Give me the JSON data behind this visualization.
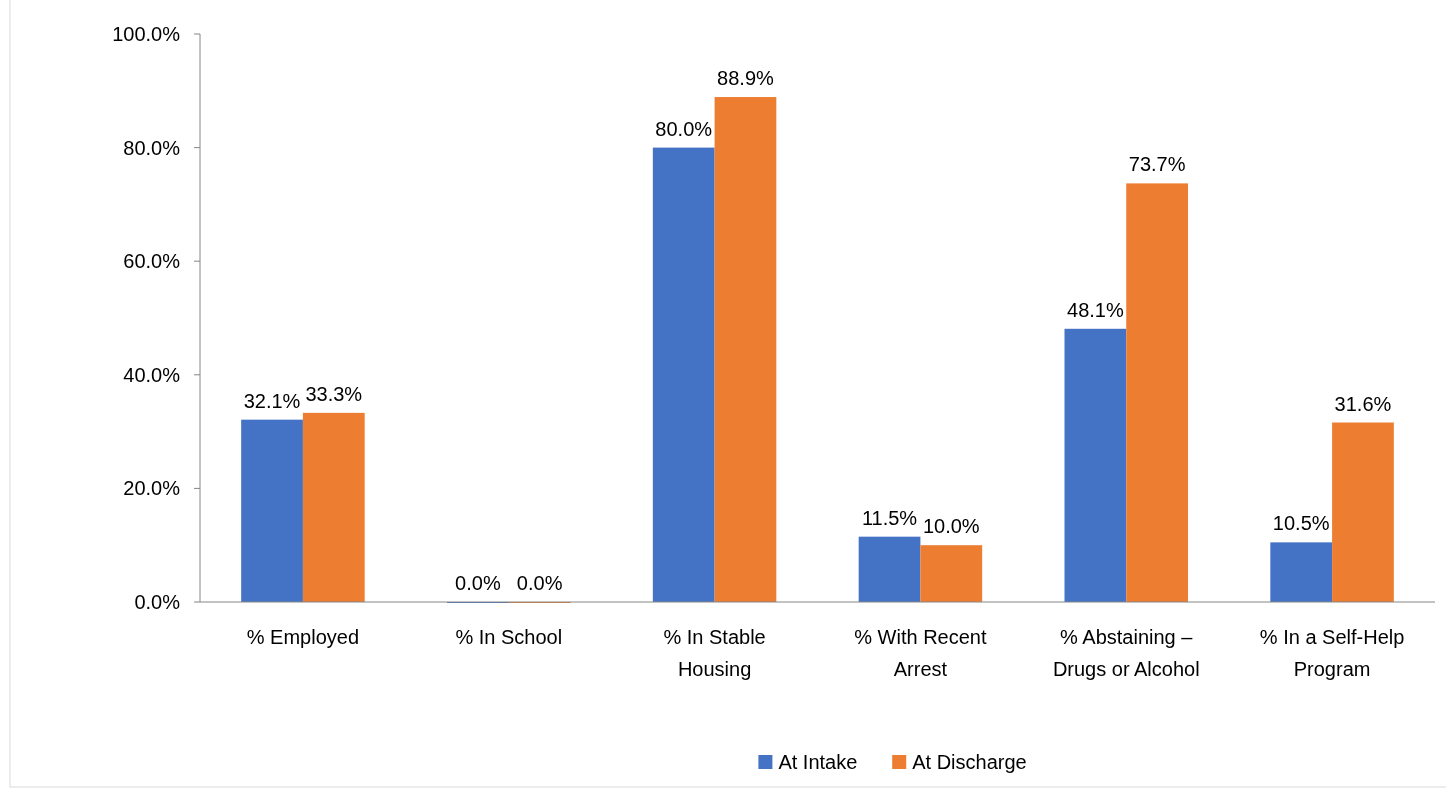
{
  "chart_data": {
    "type": "bar",
    "categories": [
      "% Employed",
      "% In School",
      "% In Stable Housing",
      "% With Recent Arrest",
      "% Abstaining – Drugs or Alcohol",
      "% In a Self-Help Program"
    ],
    "series": [
      {
        "name": "At Intake",
        "color": "#4472c4",
        "values": [
          32.1,
          0,
          80.0,
          11.5,
          48.1,
          10.5
        ],
        "value_labels": [
          "32.1%",
          "0.0%",
          "80.0%",
          "11.5%",
          "48.1%",
          "10.5%"
        ]
      },
      {
        "name": "At Discharge",
        "color": "#ed7d31",
        "values": [
          33.3,
          0,
          88.9,
          10.0,
          73.7,
          31.6
        ],
        "value_labels": [
          "33.3%",
          "0.0%",
          "88.9%",
          "10.0%",
          "73.7%",
          "31.6%"
        ]
      }
    ],
    "ylim": [
      0,
      100
    ],
    "yticks": [
      {
        "value": 0,
        "label": "0.0%"
      },
      {
        "value": 20,
        "label": "20.0%"
      },
      {
        "value": 40,
        "label": "40.0%"
      },
      {
        "value": 60,
        "label": "60.0%"
      },
      {
        "value": 80,
        "label": "80.0%"
      },
      {
        "value": 100,
        "label": "100.0%"
      }
    ],
    "grid": false,
    "legend": "bottom"
  }
}
